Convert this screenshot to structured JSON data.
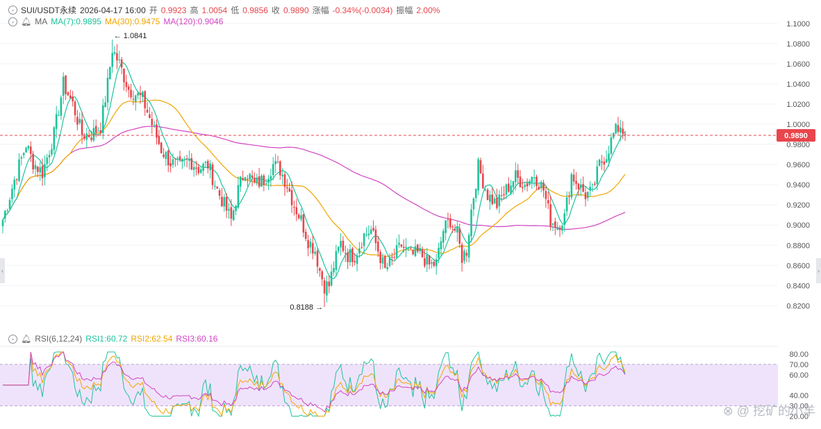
{
  "header": {
    "symbol": "SUI/USDT永续",
    "datetime": "2026-04-17 16:00",
    "open_label": "开",
    "open": "0.9923",
    "high_label": "高",
    "high": "1.0054",
    "low_label": "低",
    "low": "0.9856",
    "close_label": "收",
    "close": "0.9890",
    "change_label": "涨幅",
    "change": "-0.34%(-0.0034)",
    "amp_label": "振幅",
    "amp": "2.00%"
  },
  "ma_line": {
    "title": "MA",
    "ma7": "MA(7):0.9895",
    "ma30": "MA(30):0.9475",
    "ma120": "MA(120):0.9046"
  },
  "rsi_line": {
    "title": "RSI(6,12,24)",
    "rsi1": "RSI1:60.72",
    "rsi2": "RSI2:62.54",
    "rsi3": "RSI3:60.16"
  },
  "watermark": "挖矿的小羊",
  "colors": {
    "up": "#1ec39c",
    "down": "#e8464c",
    "ma7": "#1ec39c",
    "ma30": "#f0a500",
    "ma120": "#d244c2",
    "rsi_band": "#efe3fb"
  },
  "chart_data": [
    {
      "type": "candlestick",
      "y_ticks": [
        "1.1000",
        "1.0800",
        "1.0600",
        "1.0400",
        "1.0200",
        "1.0000",
        "0.9800",
        "0.9600",
        "0.9400",
        "0.9200",
        "0.9000",
        "0.8800",
        "0.8600",
        "0.8400",
        "0.8200"
      ],
      "ylim": [
        0.812,
        1.104
      ],
      "last_price": 0.989,
      "last_price_label": "0.9890",
      "high_marker": {
        "value": 1.0841,
        "label": "1.0841"
      },
      "low_marker": {
        "value": 0.8188,
        "label": "0.8188"
      },
      "ma_values": {
        "ma7": 0.9895,
        "ma30": 0.9475,
        "ma120": 0.9046
      },
      "close_path": [
        [
          0,
          0.905
        ],
        [
          5,
          0.945
        ],
        [
          10,
          0.98
        ],
        [
          13,
          0.962
        ],
        [
          17,
          0.952
        ],
        [
          22,
          0.99
        ],
        [
          26,
          1.04
        ],
        [
          30,
          1.02
        ],
        [
          34,
          0.99
        ],
        [
          38,
          0.99
        ],
        [
          42,
          0.998
        ],
        [
          45,
          1.04
        ],
        [
          47,
          1.075
        ],
        [
          50,
          1.06
        ],
        [
          54,
          1.035
        ],
        [
          60,
          1.025
        ],
        [
          64,
          1.0
        ],
        [
          68,
          0.975
        ],
        [
          72,
          0.962
        ],
        [
          76,
          0.958
        ],
        [
          80,
          0.965
        ],
        [
          84,
          0.956
        ],
        [
          88,
          0.96
        ],
        [
          92,
          0.935
        ],
        [
          95,
          0.92
        ],
        [
          98,
          0.905
        ],
        [
          101,
          0.935
        ],
        [
          104,
          0.955
        ],
        [
          108,
          0.94
        ],
        [
          112,
          0.945
        ],
        [
          116,
          0.96
        ],
        [
          119,
          0.955
        ],
        [
          122,
          0.94
        ],
        [
          125,
          0.92
        ],
        [
          128,
          0.905
        ],
        [
          131,
          0.885
        ],
        [
          134,
          0.875
        ],
        [
          136,
          0.855
        ],
        [
          138,
          0.84
        ],
        [
          140,
          0.84
        ],
        [
          142,
          0.86
        ],
        [
          145,
          0.882
        ],
        [
          148,
          0.87
        ],
        [
          151,
          0.87
        ],
        [
          155,
          0.89
        ],
        [
          158,
          0.895
        ],
        [
          161,
          0.875
        ],
        [
          164,
          0.855
        ],
        [
          167,
          0.865
        ],
        [
          171,
          0.88
        ],
        [
          175,
          0.87
        ],
        [
          179,
          0.872
        ],
        [
          183,
          0.86
        ],
        [
          186,
          0.862
        ],
        [
          189,
          0.895
        ],
        [
          192,
          0.905
        ],
        [
          195,
          0.89
        ],
        [
          197,
          0.868
        ],
        [
          199,
          0.875
        ],
        [
          201,
          0.915
        ],
        [
          204,
          0.958
        ],
        [
          208,
          0.93
        ],
        [
          212,
          0.92
        ],
        [
          216,
          0.935
        ],
        [
          220,
          0.948
        ],
        [
          224,
          0.94
        ],
        [
          228,
          0.95
        ],
        [
          232,
          0.935
        ],
        [
          235,
          0.905
        ],
        [
          238,
          0.9
        ],
        [
          241,
          0.908
        ],
        [
          244,
          0.95
        ],
        [
          247,
          0.94
        ],
        [
          250,
          0.93
        ],
        [
          253,
          0.933
        ],
        [
          256,
          0.96
        ],
        [
          259,
          0.97
        ],
        [
          262,
          0.99
        ],
        [
          265,
          0.999
        ],
        [
          267,
          0.989
        ]
      ]
    },
    {
      "type": "line",
      "y_ticks": [
        "80.00",
        "70.00",
        "60.00",
        "40.00",
        "30.00",
        "20.00"
      ],
      "ylim": [
        17,
        84
      ],
      "overbought": 70,
      "oversold": 30,
      "last_values": {
        "rsi1": 60.72,
        "rsi2": 62.54,
        "rsi3": 60.16
      }
    }
  ]
}
